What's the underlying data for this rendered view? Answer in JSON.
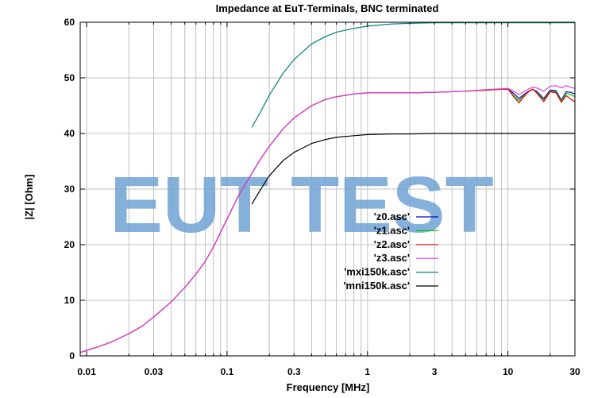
{
  "chart_data": {
    "type": "line",
    "title": "Impedance at EuT-Terminals, BNC terminated",
    "xlabel": "Frequency [MHz]",
    "ylabel": "|Z| [Ohm]",
    "x_scale": "log",
    "xlim": [
      0.009,
      30
    ],
    "ylim": [
      0,
      60
    ],
    "grid": true,
    "legend_position": "center-right",
    "x_tick_labels": [
      {
        "value": 0.01,
        "label": "0.01"
      },
      {
        "value": 0.03,
        "label": "0.03"
      },
      {
        "value": 0.1,
        "label": "0.1"
      },
      {
        "value": 0.3,
        "label": "0.3"
      },
      {
        "value": 1,
        "label": "1"
      },
      {
        "value": 3,
        "label": "3"
      },
      {
        "value": 10,
        "label": "10"
      },
      {
        "value": 30,
        "label": "30"
      }
    ],
    "y_ticks": [
      0,
      10,
      20,
      30,
      40,
      50,
      60
    ],
    "watermark": "EUT TEST",
    "series": [
      {
        "name": "'z0.asc'",
        "color": "#0000c8",
        "x": [
          0.009,
          0.01,
          0.012,
          0.015,
          0.02,
          0.025,
          0.03,
          0.04,
          0.05,
          0.06,
          0.07,
          0.08,
          0.1,
          0.12,
          0.15,
          0.17,
          0.2,
          0.25,
          0.3,
          0.4,
          0.5,
          0.6,
          0.8,
          1,
          1.5,
          2,
          3,
          5,
          7,
          10,
          11,
          12,
          13,
          14,
          15,
          16,
          18,
          20,
          22,
          24,
          26,
          28,
          30
        ],
        "y": [
          0.6,
          1.0,
          1.6,
          2.5,
          4.0,
          5.4,
          7.0,
          9.7,
          12.3,
          14.7,
          17.0,
          19.6,
          24.6,
          28.7,
          32.8,
          35.1,
          37.7,
          40.8,
          42.8,
          45.0,
          46.1,
          46.6,
          47.1,
          47.3,
          47.3,
          47.3,
          47.4,
          47.6,
          47.8,
          48.0,
          47.2,
          46.3,
          47.0,
          47.6,
          47.9,
          47.6,
          46.3,
          47.8,
          47.7,
          46.0,
          47.5,
          47.4,
          47.1
        ]
      },
      {
        "name": "'z1.asc'",
        "color": "#00c800",
        "x": [
          0.009,
          0.01,
          0.012,
          0.015,
          0.02,
          0.025,
          0.03,
          0.04,
          0.05,
          0.06,
          0.07,
          0.08,
          0.1,
          0.12,
          0.15,
          0.17,
          0.2,
          0.25,
          0.3,
          0.4,
          0.5,
          0.6,
          0.8,
          1,
          1.5,
          2,
          3,
          5,
          7,
          10,
          11,
          12,
          13,
          14,
          15,
          16,
          18,
          20,
          22,
          24,
          26,
          28,
          30
        ],
        "y": [
          0.6,
          1.0,
          1.6,
          2.5,
          4.0,
          5.4,
          7.0,
          9.7,
          12.3,
          14.7,
          17.0,
          19.6,
          24.6,
          28.7,
          32.8,
          35.1,
          37.7,
          40.8,
          42.8,
          45.0,
          46.1,
          46.6,
          47.1,
          47.3,
          47.3,
          47.3,
          47.4,
          47.6,
          47.8,
          48.0,
          46.8,
          45.9,
          46.8,
          47.5,
          47.9,
          47.4,
          46.0,
          47.6,
          47.5,
          45.8,
          47.2,
          47.0,
          46.6
        ]
      },
      {
        "name": "'z2.asc'",
        "color": "#ff0000",
        "x": [
          0.009,
          0.01,
          0.012,
          0.015,
          0.02,
          0.025,
          0.03,
          0.04,
          0.05,
          0.06,
          0.07,
          0.08,
          0.1,
          0.12,
          0.15,
          0.17,
          0.2,
          0.25,
          0.3,
          0.4,
          0.5,
          0.6,
          0.8,
          1,
          1.5,
          2,
          3,
          5,
          7,
          10,
          11,
          12,
          13,
          14,
          15,
          16,
          18,
          20,
          22,
          24,
          26,
          28,
          30
        ],
        "y": [
          0.6,
          1.0,
          1.6,
          2.5,
          4.0,
          5.4,
          7.0,
          9.7,
          12.3,
          14.7,
          17.0,
          19.6,
          24.6,
          28.7,
          32.8,
          35.1,
          37.7,
          40.8,
          42.8,
          45.0,
          46.1,
          46.6,
          47.1,
          47.3,
          47.3,
          47.3,
          47.4,
          47.6,
          47.8,
          48.0,
          46.6,
          45.5,
          46.6,
          47.5,
          48.0,
          47.3,
          45.7,
          47.5,
          47.3,
          45.6,
          46.8,
          46.2,
          45.7
        ]
      },
      {
        "name": "'z3.asc'",
        "color": "#e040e0",
        "x": [
          0.009,
          0.01,
          0.012,
          0.015,
          0.02,
          0.025,
          0.03,
          0.04,
          0.05,
          0.06,
          0.07,
          0.08,
          0.1,
          0.12,
          0.15,
          0.17,
          0.2,
          0.25,
          0.3,
          0.4,
          0.5,
          0.6,
          0.8,
          1,
          1.5,
          2,
          3,
          5,
          7,
          10,
          11,
          12,
          13,
          14,
          15,
          16,
          18,
          20,
          22,
          24,
          26,
          28,
          30
        ],
        "y": [
          0.6,
          1.0,
          1.6,
          2.5,
          4.0,
          5.4,
          7.0,
          9.7,
          12.3,
          14.7,
          17.0,
          19.6,
          24.6,
          28.7,
          32.8,
          35.1,
          37.7,
          40.8,
          42.8,
          45.0,
          46.1,
          46.6,
          47.1,
          47.3,
          47.3,
          47.3,
          47.4,
          47.6,
          47.9,
          48.1,
          47.6,
          47.0,
          47.5,
          48.0,
          48.3,
          48.2,
          47.6,
          48.5,
          48.6,
          48.2,
          48.6,
          48.3,
          48.1
        ]
      },
      {
        "name": "'mxi150k.asc'",
        "color": "#008080",
        "x": [
          0.15,
          0.17,
          0.2,
          0.25,
          0.3,
          0.4,
          0.5,
          0.6,
          0.8,
          1,
          1.5,
          2,
          3,
          5,
          10,
          20,
          30
        ],
        "y": [
          41.1,
          43.5,
          46.9,
          50.8,
          53.3,
          56.1,
          57.4,
          58.2,
          58.9,
          59.3,
          59.7,
          59.8,
          59.9,
          59.9,
          59.9,
          59.9,
          59.9
        ]
      },
      {
        "name": "'mni150k.asc'",
        "color": "#000000",
        "x": [
          0.15,
          0.17,
          0.2,
          0.25,
          0.3,
          0.4,
          0.5,
          0.6,
          0.8,
          1,
          1.5,
          2,
          3,
          5,
          10,
          20,
          30
        ],
        "y": [
          27.3,
          29.6,
          32.4,
          35.1,
          36.6,
          38.2,
          38.9,
          39.3,
          39.6,
          39.8,
          39.9,
          39.9,
          40.0,
          40.0,
          40.0,
          40.0,
          40.0
        ]
      }
    ]
  }
}
